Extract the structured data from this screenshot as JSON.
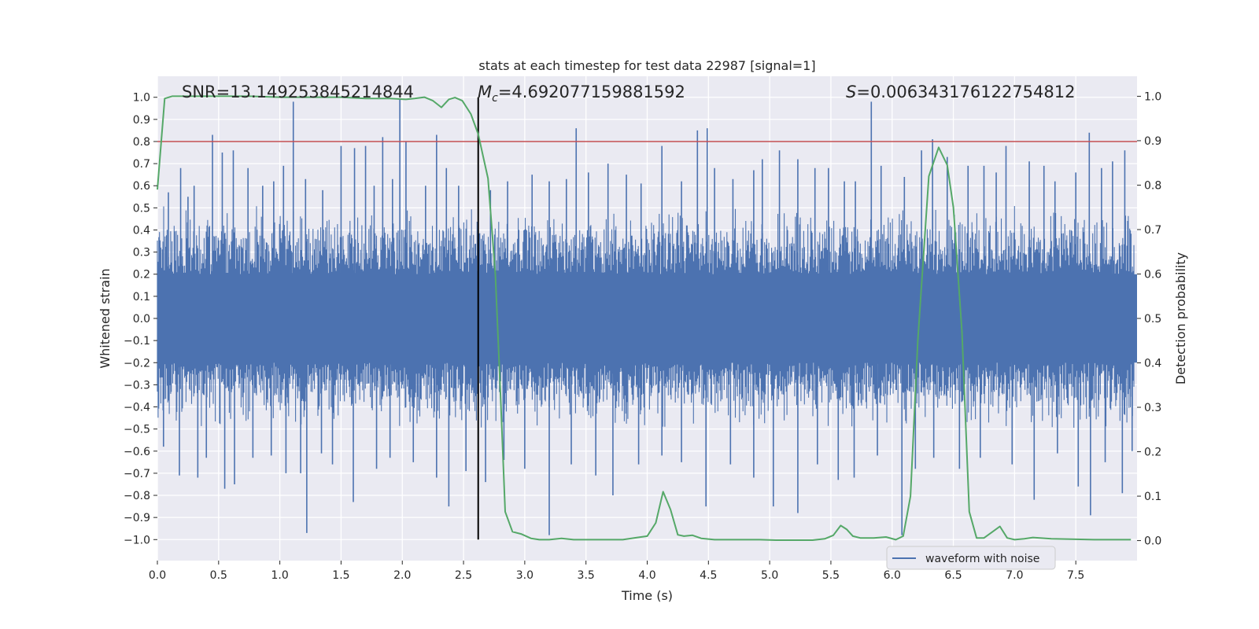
{
  "chart_data": {
    "type": "line",
    "title": "stats at each timestep for test data 22987 [signal=1]",
    "xlabel": "Time (s)",
    "ylabel": "Whitened strain",
    "ylabel_right": "Detection probability",
    "xlim": [
      0.0,
      8.0
    ],
    "ylim": [
      -1.095,
      1.095
    ],
    "ylim_right": [
      -0.045,
      1.045
    ],
    "x_ticks": [
      0.0,
      0.5,
      1.0,
      1.5,
      2.0,
      2.5,
      3.0,
      3.5,
      4.0,
      4.5,
      5.0,
      5.5,
      6.0,
      6.5,
      7.0,
      7.5
    ],
    "x_tick_labels": [
      "0.0",
      "0.5",
      "1.0",
      "1.5",
      "2.0",
      "2.5",
      "3.0",
      "3.5",
      "4.0",
      "4.5",
      "5.0",
      "5.5",
      "6.0",
      "6.5",
      "7.0",
      "7.5"
    ],
    "y_ticks": [
      1.0,
      0.9,
      0.8,
      0.7,
      0.6,
      0.5,
      0.4,
      0.3,
      0.2,
      0.1,
      0.0,
      -0.1,
      -0.2,
      -0.3,
      -0.4,
      -0.5,
      -0.6,
      -0.7,
      -0.8,
      -0.9,
      -1.0
    ],
    "y_tick_labels": [
      "1.0",
      "0.9",
      "0.8",
      "0.7",
      "0.6",
      "0.5",
      "0.4",
      "0.3",
      "0.2",
      "0.1",
      "0.0",
      "−0.1",
      "−0.2",
      "−0.3",
      "−0.4",
      "−0.5",
      "−0.6",
      "−0.7",
      "−0.8",
      "−0.9",
      "−1.0"
    ],
    "y_ticks_right": [
      1.0,
      0.9,
      0.8,
      0.7,
      0.6,
      0.5,
      0.4,
      0.3,
      0.2,
      0.1,
      0.0
    ],
    "y_tick_labels_right": [
      "1.0",
      "0.9",
      "0.8",
      "0.7",
      "0.6",
      "0.5",
      "0.4",
      "0.3",
      "0.2",
      "0.1",
      "0.0"
    ],
    "annotations": {
      "snr": "SNR=13.149253845214844",
      "mc_symbol": "M",
      "mc_subscript": "c",
      "mc_value": "=4.692077159881592",
      "s_symbol": "S",
      "s_value": "=0.006343176122754812"
    },
    "event_time": 2.62,
    "threshold": 0.8,
    "legend": {
      "label": "waveform with noise",
      "placement": "lower-right"
    },
    "colors": {
      "waveform": "#4c72b0",
      "probability": "#55a868",
      "threshold": "#c44e52",
      "event_line": "#000000",
      "plot_bg": "#eaeaf2",
      "grid": "#ffffff"
    },
    "waveform_band": {
      "core_amplitude": 0.2,
      "typical_peak": 0.45,
      "max_peak": 0.98,
      "min_trough": -0.99
    },
    "waveform_spikes": [
      {
        "t": 0.09,
        "v": 0.57
      },
      {
        "t": 0.19,
        "v": 0.68
      },
      {
        "t": 0.25,
        "v": 0.55
      },
      {
        "t": 0.3,
        "v": 0.6
      },
      {
        "t": 0.45,
        "v": 0.83
      },
      {
        "t": 0.53,
        "v": 0.75
      },
      {
        "t": 0.62,
        "v": 0.76
      },
      {
        "t": 0.74,
        "v": 0.68
      },
      {
        "t": 0.86,
        "v": 0.6
      },
      {
        "t": 0.95,
        "v": 0.62
      },
      {
        "t": 1.03,
        "v": 0.69
      },
      {
        "t": 1.11,
        "v": 0.98
      },
      {
        "t": 1.21,
        "v": 0.63
      },
      {
        "t": 1.35,
        "v": 0.58
      },
      {
        "t": 1.5,
        "v": 0.78
      },
      {
        "t": 1.61,
        "v": 0.77
      },
      {
        "t": 1.7,
        "v": 0.78
      },
      {
        "t": 1.77,
        "v": 0.6
      },
      {
        "t": 1.84,
        "v": 0.82
      },
      {
        "t": 1.92,
        "v": 0.63
      },
      {
        "t": 1.98,
        "v": 0.99
      },
      {
        "t": 2.03,
        "v": 0.8
      },
      {
        "t": 2.19,
        "v": 0.6
      },
      {
        "t": 2.28,
        "v": 0.83
      },
      {
        "t": 2.36,
        "v": 0.68
      },
      {
        "t": 2.46,
        "v": 0.6
      },
      {
        "t": 2.72,
        "v": 0.58
      },
      {
        "t": 2.86,
        "v": 0.62
      },
      {
        "t": 3.06,
        "v": 0.65
      },
      {
        "t": 3.2,
        "v": 0.62
      },
      {
        "t": 3.34,
        "v": 0.63
      },
      {
        "t": 3.42,
        "v": 0.86
      },
      {
        "t": 3.52,
        "v": 0.66
      },
      {
        "t": 3.68,
        "v": 0.7
      },
      {
        "t": 3.83,
        "v": 0.65
      },
      {
        "t": 3.95,
        "v": 0.61
      },
      {
        "t": 4.12,
        "v": 0.78
      },
      {
        "t": 4.28,
        "v": 0.62
      },
      {
        "t": 4.41,
        "v": 0.85
      },
      {
        "t": 4.49,
        "v": 0.86
      },
      {
        "t": 4.55,
        "v": 0.68
      },
      {
        "t": 4.7,
        "v": 0.63
      },
      {
        "t": 4.87,
        "v": 0.67
      },
      {
        "t": 4.94,
        "v": 0.72
      },
      {
        "t": 5.08,
        "v": 0.76
      },
      {
        "t": 5.23,
        "v": 0.72
      },
      {
        "t": 5.37,
        "v": 0.68
      },
      {
        "t": 5.48,
        "v": 0.68
      },
      {
        "t": 5.61,
        "v": 0.62
      },
      {
        "t": 5.7,
        "v": 0.62
      },
      {
        "t": 5.83,
        "v": 0.98
      },
      {
        "t": 5.91,
        "v": 0.69
      },
      {
        "t": 6.1,
        "v": 0.64
      },
      {
        "t": 6.24,
        "v": 0.76
      },
      {
        "t": 6.33,
        "v": 0.81
      },
      {
        "t": 6.45,
        "v": 0.73
      },
      {
        "t": 6.62,
        "v": 0.69
      },
      {
        "t": 6.75,
        "v": 0.69
      },
      {
        "t": 6.85,
        "v": 0.66
      },
      {
        "t": 6.93,
        "v": 0.78
      },
      {
        "t": 7.12,
        "v": 0.71
      },
      {
        "t": 7.24,
        "v": 0.69
      },
      {
        "t": 7.33,
        "v": 0.62
      },
      {
        "t": 7.5,
        "v": 0.66
      },
      {
        "t": 7.61,
        "v": 0.84
      },
      {
        "t": 7.71,
        "v": 0.68
      },
      {
        "t": 7.8,
        "v": 0.71
      },
      {
        "t": 7.9,
        "v": 0.76
      },
      {
        "t": 0.05,
        "v": -0.58
      },
      {
        "t": 0.18,
        "v": -0.71
      },
      {
        "t": 0.33,
        "v": -0.72
      },
      {
        "t": 0.4,
        "v": -0.63
      },
      {
        "t": 0.55,
        "v": -0.77
      },
      {
        "t": 0.63,
        "v": -0.75
      },
      {
        "t": 0.78,
        "v": -0.63
      },
      {
        "t": 0.93,
        "v": -0.62
      },
      {
        "t": 1.05,
        "v": -0.7
      },
      {
        "t": 1.17,
        "v": -0.7
      },
      {
        "t": 1.22,
        "v": -0.97
      },
      {
        "t": 1.34,
        "v": -0.61
      },
      {
        "t": 1.43,
        "v": -0.66
      },
      {
        "t": 1.6,
        "v": -0.83
      },
      {
        "t": 1.79,
        "v": -0.68
      },
      {
        "t": 1.9,
        "v": -0.63
      },
      {
        "t": 2.09,
        "v": -0.65
      },
      {
        "t": 2.28,
        "v": -0.72
      },
      {
        "t": 2.38,
        "v": -0.85
      },
      {
        "t": 2.52,
        "v": -0.69
      },
      {
        "t": 2.68,
        "v": -0.74
      },
      {
        "t": 2.83,
        "v": -0.64
      },
      {
        "t": 3.0,
        "v": -0.68
      },
      {
        "t": 3.2,
        "v": -0.98
      },
      {
        "t": 3.38,
        "v": -0.66
      },
      {
        "t": 3.58,
        "v": -0.71
      },
      {
        "t": 3.72,
        "v": -0.8
      },
      {
        "t": 3.93,
        "v": -0.66
      },
      {
        "t": 4.12,
        "v": -0.62
      },
      {
        "t": 4.28,
        "v": -0.65
      },
      {
        "t": 4.48,
        "v": -0.85
      },
      {
        "t": 4.68,
        "v": -0.66
      },
      {
        "t": 4.87,
        "v": -0.72
      },
      {
        "t": 5.03,
        "v": -0.85
      },
      {
        "t": 5.23,
        "v": -0.88
      },
      {
        "t": 5.39,
        "v": -0.66
      },
      {
        "t": 5.56,
        "v": -0.73
      },
      {
        "t": 5.69,
        "v": -0.72
      },
      {
        "t": 5.88,
        "v": -0.62
      },
      {
        "t": 6.08,
        "v": -0.98
      },
      {
        "t": 6.19,
        "v": -0.68
      },
      {
        "t": 6.34,
        "v": -0.63
      },
      {
        "t": 6.55,
        "v": -0.68
      },
      {
        "t": 6.72,
        "v": -0.63
      },
      {
        "t": 6.98,
        "v": -0.66
      },
      {
        "t": 7.16,
        "v": -0.82
      },
      {
        "t": 7.35,
        "v": -0.61
      },
      {
        "t": 7.52,
        "v": -0.76
      },
      {
        "t": 7.62,
        "v": -0.89
      },
      {
        "t": 7.74,
        "v": -0.65
      },
      {
        "t": 7.88,
        "v": -0.79
      },
      {
        "t": 7.96,
        "v": -0.6
      }
    ],
    "series": [
      {
        "name": "detection probability",
        "axis": "right",
        "points": [
          [
            0.0,
            0.79
          ],
          [
            0.06,
            0.995
          ],
          [
            0.12,
            1.0
          ],
          [
            0.25,
            1.0
          ],
          [
            0.5,
            1.0
          ],
          [
            0.75,
            1.0
          ],
          [
            1.0,
            0.998
          ],
          [
            1.25,
            0.998
          ],
          [
            1.5,
            0.998
          ],
          [
            1.7,
            0.995
          ],
          [
            1.9,
            0.995
          ],
          [
            2.03,
            0.993
          ],
          [
            2.1,
            0.995
          ],
          [
            2.18,
            0.998
          ],
          [
            2.25,
            0.99
          ],
          [
            2.32,
            0.975
          ],
          [
            2.38,
            0.993
          ],
          [
            2.43,
            0.997
          ],
          [
            2.49,
            0.99
          ],
          [
            2.56,
            0.96
          ],
          [
            2.62,
            0.915
          ],
          [
            2.7,
            0.815
          ],
          [
            2.76,
            0.6
          ],
          [
            2.8,
            0.34
          ],
          [
            2.84,
            0.065
          ],
          [
            2.9,
            0.02
          ],
          [
            2.97,
            0.015
          ],
          [
            3.05,
            0.005
          ],
          [
            3.12,
            0.002
          ],
          [
            3.2,
            0.002
          ],
          [
            3.3,
            0.005
          ],
          [
            3.4,
            0.002
          ],
          [
            3.6,
            0.002
          ],
          [
            3.8,
            0.002
          ],
          [
            3.92,
            0.007
          ],
          [
            4.0,
            0.01
          ],
          [
            4.07,
            0.04
          ],
          [
            4.13,
            0.11
          ],
          [
            4.19,
            0.07
          ],
          [
            4.25,
            0.013
          ],
          [
            4.3,
            0.01
          ],
          [
            4.37,
            0.012
          ],
          [
            4.44,
            0.005
          ],
          [
            4.55,
            0.002
          ],
          [
            4.75,
            0.002
          ],
          [
            4.92,
            0.002
          ],
          [
            5.05,
            0.001
          ],
          [
            5.2,
            0.001
          ],
          [
            5.35,
            0.001
          ],
          [
            5.45,
            0.004
          ],
          [
            5.52,
            0.012
          ],
          [
            5.58,
            0.034
          ],
          [
            5.63,
            0.025
          ],
          [
            5.68,
            0.01
          ],
          [
            5.74,
            0.006
          ],
          [
            5.85,
            0.006
          ],
          [
            5.95,
            0.008
          ],
          [
            6.03,
            0.002
          ],
          [
            6.09,
            0.01
          ],
          [
            6.15,
            0.1
          ],
          [
            6.21,
            0.45
          ],
          [
            6.3,
            0.82
          ],
          [
            6.38,
            0.885
          ],
          [
            6.45,
            0.845
          ],
          [
            6.5,
            0.75
          ],
          [
            6.57,
            0.47
          ],
          [
            6.63,
            0.065
          ],
          [
            6.69,
            0.006
          ],
          [
            6.75,
            0.006
          ],
          [
            6.82,
            0.02
          ],
          [
            6.88,
            0.032
          ],
          [
            6.94,
            0.006
          ],
          [
            7.0,
            0.002
          ],
          [
            7.08,
            0.004
          ],
          [
            7.15,
            0.007
          ],
          [
            7.3,
            0.004
          ],
          [
            7.5,
            0.003
          ],
          [
            7.65,
            0.002
          ],
          [
            7.8,
            0.002
          ],
          [
            7.95,
            0.002
          ]
        ]
      }
    ]
  }
}
